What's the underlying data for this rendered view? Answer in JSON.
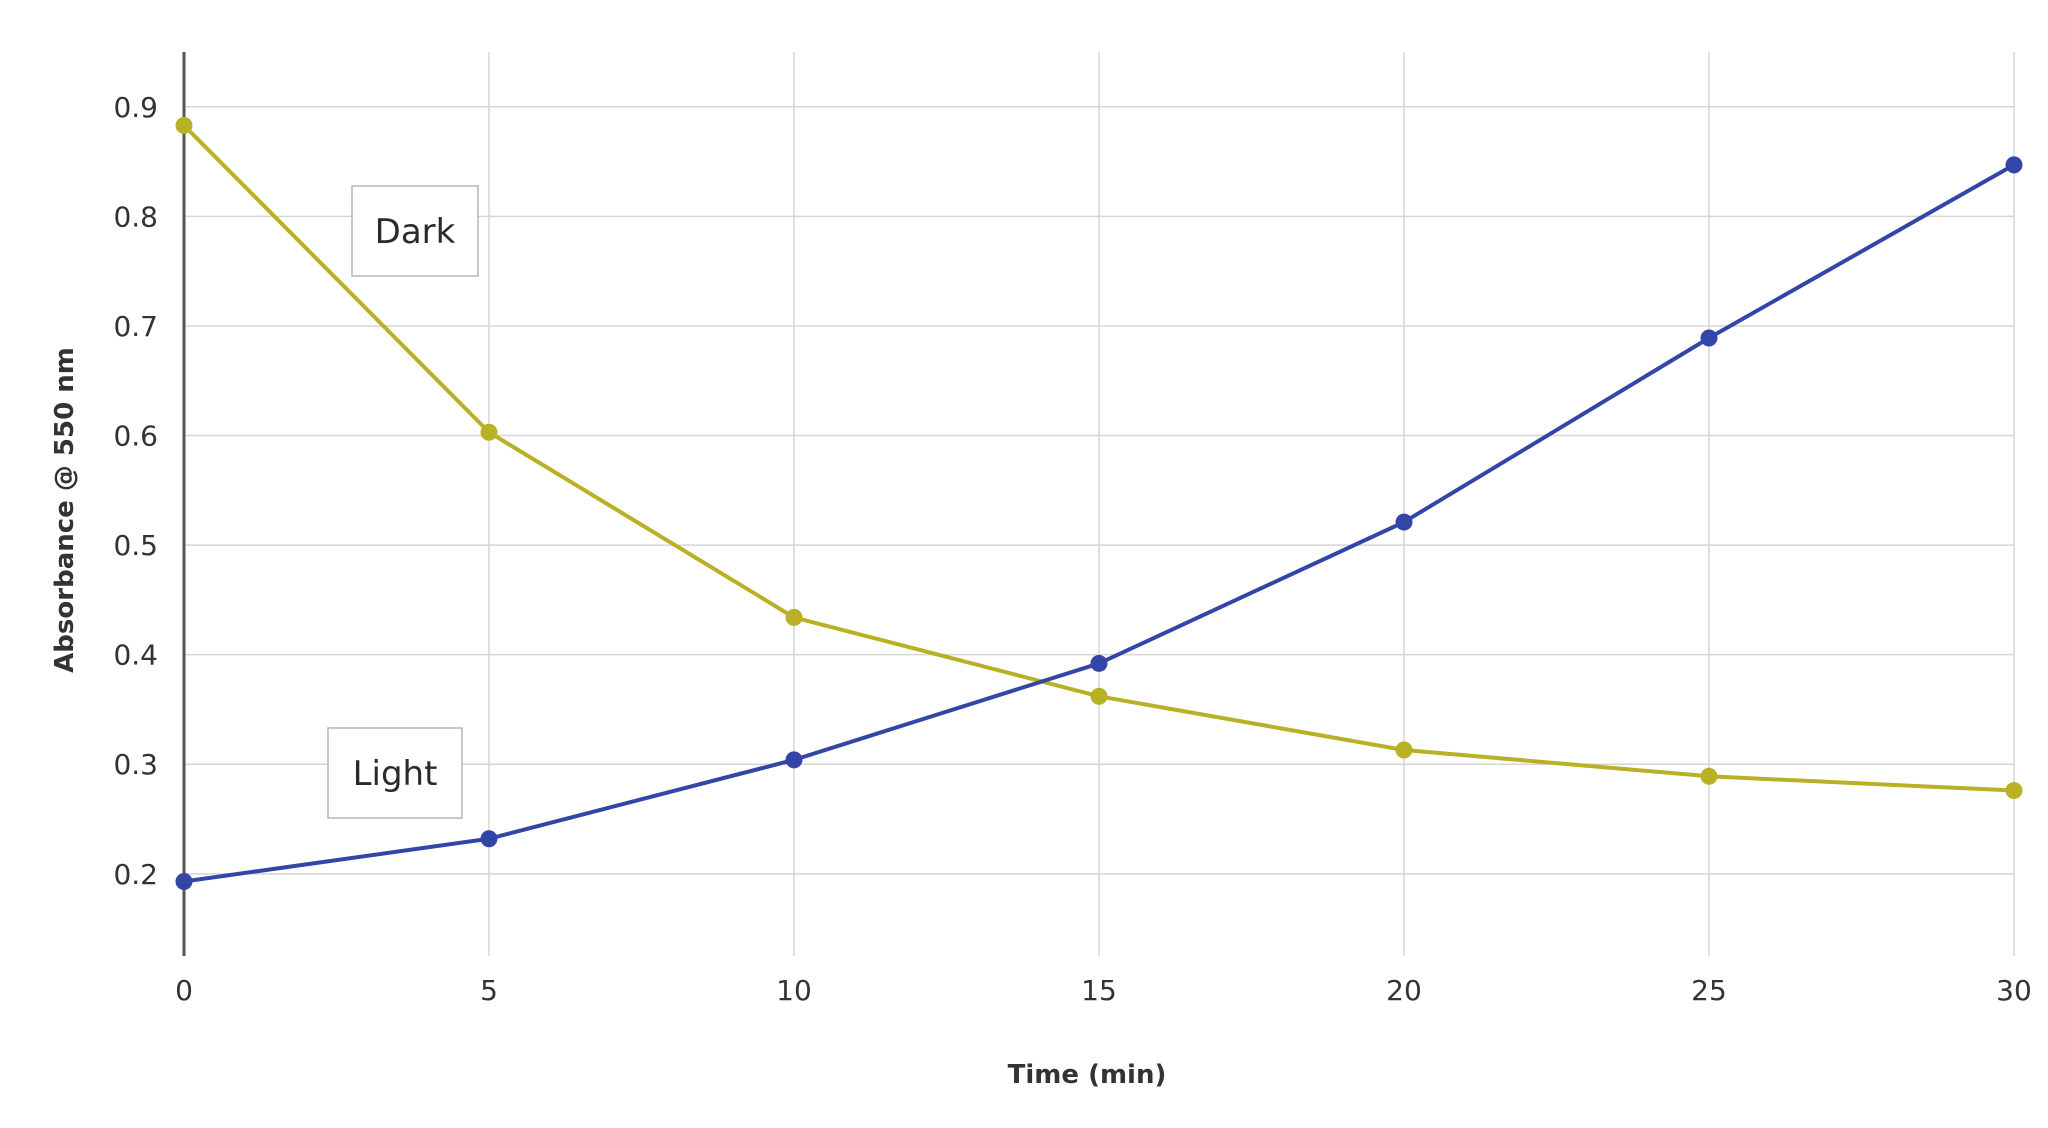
{
  "chart_data": {
    "type": "line",
    "title": "",
    "xlabel": "Time (min)",
    "ylabel": "Absorbance @ 550 nm",
    "x": [
      0,
      5,
      10,
      15,
      20,
      25,
      30
    ],
    "x_ticks": [
      "0",
      "5",
      "10",
      "15",
      "20",
      "25",
      "30"
    ],
    "y_ticks": [
      "0.2",
      "0.3",
      "0.4",
      "0.5",
      "0.6",
      "0.7",
      "0.8",
      "0.9"
    ],
    "xlim": [
      0,
      30
    ],
    "ylim": [
      0.125,
      0.95
    ],
    "grid": true,
    "series": [
      {
        "name": "Dark",
        "color": "#b8b125",
        "values": [
          0.883,
          0.603,
          0.434,
          0.362,
          0.313,
          0.289,
          0.276
        ]
      },
      {
        "name": "Light",
        "color": "#3445a8",
        "values": [
          0.193,
          0.232,
          0.304,
          0.392,
          0.521,
          0.689,
          0.847
        ]
      }
    ],
    "annotations": [
      {
        "text": "Dark",
        "series": "Dark"
      },
      {
        "text": "Light",
        "series": "Light"
      }
    ]
  }
}
